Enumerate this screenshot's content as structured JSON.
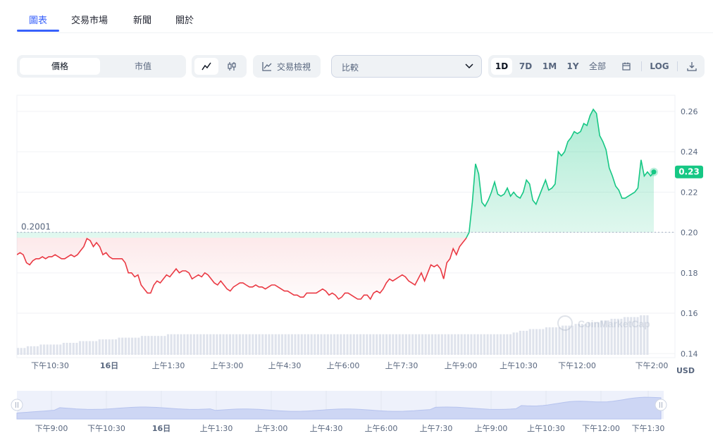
{
  "tabs": [
    {
      "label": "圖表",
      "active": true
    },
    {
      "label": "交易市場"
    },
    {
      "label": "新聞"
    },
    {
      "label": "關於"
    }
  ],
  "toolbar": {
    "price_label": "價格",
    "mcap_label": "市值",
    "trading_view_label": "交易檢視",
    "compare_label": "比較",
    "timeframes": [
      "1D",
      "7D",
      "1M",
      "1Y",
      "全部"
    ],
    "log_label": "LOG"
  },
  "icons": [
    "line-chart-icon",
    "candlestick-icon",
    "trading-view-icon",
    "chevron-down-icon",
    "calendar-icon",
    "download-icon"
  ],
  "colors": {
    "accent": "#3861fb",
    "up": "#16c784",
    "down": "#ea3943"
  },
  "chart_data": {
    "type": "line",
    "reference_value": "0.2001",
    "current_value": "0.23",
    "y_ticks": [
      "0.26",
      "0.24",
      "0.22",
      "0.20",
      "0.18",
      "0.16",
      "0.14"
    ],
    "ylim": [
      0.138,
      0.268
    ],
    "currency": "USD",
    "x_ticks": [
      "下午10:30",
      "16日",
      "上午1:30",
      "上午3:00",
      "上午4:30",
      "上午6:00",
      "上午7:30",
      "上午9:00",
      "上午10:30",
      "下午12:00",
      "下午2:00"
    ],
    "nav_ticks": [
      "下午9:00",
      "下午10:30",
      "16日",
      "上午1:30",
      "上午3:00",
      "上午4:30",
      "上午6:00",
      "上午7:30",
      "上午9:00",
      "上午10:30",
      "下午12:00",
      "下午1:30"
    ],
    "series": [
      {
        "values": [
          0.189,
          0.19,
          0.189,
          0.185,
          0.184,
          0.186,
          0.187,
          0.187,
          0.188,
          0.187,
          0.188,
          0.188,
          0.189,
          0.188,
          0.187,
          0.187,
          0.188,
          0.189,
          0.188,
          0.189,
          0.191,
          0.193,
          0.197,
          0.196,
          0.193,
          0.195,
          0.193,
          0.189,
          0.19,
          0.188,
          0.187,
          0.187,
          0.187,
          0.187,
          0.185,
          0.18,
          0.18,
          0.178,
          0.179,
          0.174,
          0.172,
          0.17,
          0.17,
          0.174,
          0.176,
          0.175,
          0.177,
          0.179,
          0.178,
          0.18,
          0.182,
          0.18,
          0.181,
          0.181,
          0.18,
          0.177,
          0.178,
          0.179,
          0.178,
          0.18,
          0.179,
          0.177,
          0.175,
          0.174,
          0.176,
          0.174,
          0.172,
          0.171,
          0.173,
          0.174,
          0.175,
          0.175,
          0.174,
          0.173,
          0.173,
          0.174,
          0.173,
          0.173,
          0.172,
          0.173,
          0.174,
          0.174,
          0.173,
          0.172,
          0.171,
          0.171,
          0.17,
          0.169,
          0.169,
          0.168,
          0.168,
          0.17,
          0.17,
          0.17,
          0.17,
          0.171,
          0.172,
          0.171,
          0.169,
          0.17,
          0.169,
          0.167,
          0.168,
          0.17,
          0.17,
          0.169,
          0.168,
          0.167,
          0.167,
          0.169,
          0.169,
          0.167,
          0.17,
          0.171,
          0.17,
          0.172,
          0.175,
          0.177,
          0.176,
          0.177,
          0.178,
          0.179,
          0.178,
          0.176,
          0.175,
          0.174,
          0.177,
          0.18,
          0.176,
          0.18,
          0.184,
          0.183,
          0.184,
          0.182,
          0.177,
          0.185,
          0.187,
          0.192,
          0.189,
          0.193,
          0.195,
          0.197,
          0.2,
          0.215,
          0.234,
          0.229,
          0.215,
          0.213,
          0.216,
          0.22,
          0.225,
          0.219,
          0.218,
          0.219,
          0.222,
          0.218,
          0.22,
          0.218,
          0.217,
          0.22,
          0.226,
          0.224,
          0.216,
          0.214,
          0.218,
          0.222,
          0.226,
          0.221,
          0.222,
          0.224,
          0.24,
          0.238,
          0.24,
          0.245,
          0.247,
          0.25,
          0.249,
          0.25,
          0.254,
          0.253,
          0.258,
          0.261,
          0.259,
          0.248,
          0.245,
          0.241,
          0.232,
          0.228,
          0.223,
          0.221,
          0.217,
          0.217,
          0.218,
          0.219,
          0.22,
          0.222,
          0.236,
          0.228,
          0.23,
          0.228,
          0.23
        ]
      }
    ],
    "volume": [
      4,
      4,
      4,
      5,
      5,
      5,
      5,
      6,
      6,
      6,
      6,
      6,
      6,
      6,
      7,
      7,
      7,
      7,
      7,
      8,
      8,
      8,
      8,
      8,
      8,
      9,
      9,
      9,
      9,
      9,
      9,
      10,
      10,
      10,
      10,
      10,
      10,
      10,
      11,
      11,
      11,
      11,
      11,
      11,
      11,
      11,
      12,
      12,
      12,
      12,
      12,
      12,
      12,
      12,
      12,
      12,
      12,
      12,
      12,
      12,
      12,
      12,
      12,
      12,
      12,
      12,
      12,
      12,
      12,
      12,
      12,
      12,
      12,
      12,
      12,
      12,
      12,
      12,
      12,
      12,
      12,
      12,
      12,
      12,
      12,
      12,
      12,
      12,
      12,
      12,
      12,
      12,
      12,
      12,
      12,
      12,
      12,
      12,
      12,
      12,
      12,
      12,
      12,
      12,
      12,
      12,
      12,
      12,
      12,
      12,
      12,
      12,
      12,
      12,
      12,
      12,
      12,
      12,
      12,
      12,
      12,
      12,
      12,
      12,
      12,
      12,
      12,
      12,
      12,
      12,
      12,
      12,
      12,
      12,
      12,
      12,
      12,
      12,
      12,
      12,
      12,
      12,
      12,
      12,
      12,
      12,
      12,
      12,
      12,
      12,
      12,
      12,
      13,
      13,
      14,
      14,
      14,
      15,
      15,
      15,
      15,
      15,
      16,
      16,
      16,
      16,
      16,
      17,
      17,
      17,
      17,
      18,
      18,
      18,
      18,
      19,
      19,
      19,
      19,
      20,
      20,
      20,
      21,
      21,
      21,
      21,
      22,
      22,
      22,
      22,
      22,
      23,
      23,
      23
    ],
    "grid": true
  }
}
